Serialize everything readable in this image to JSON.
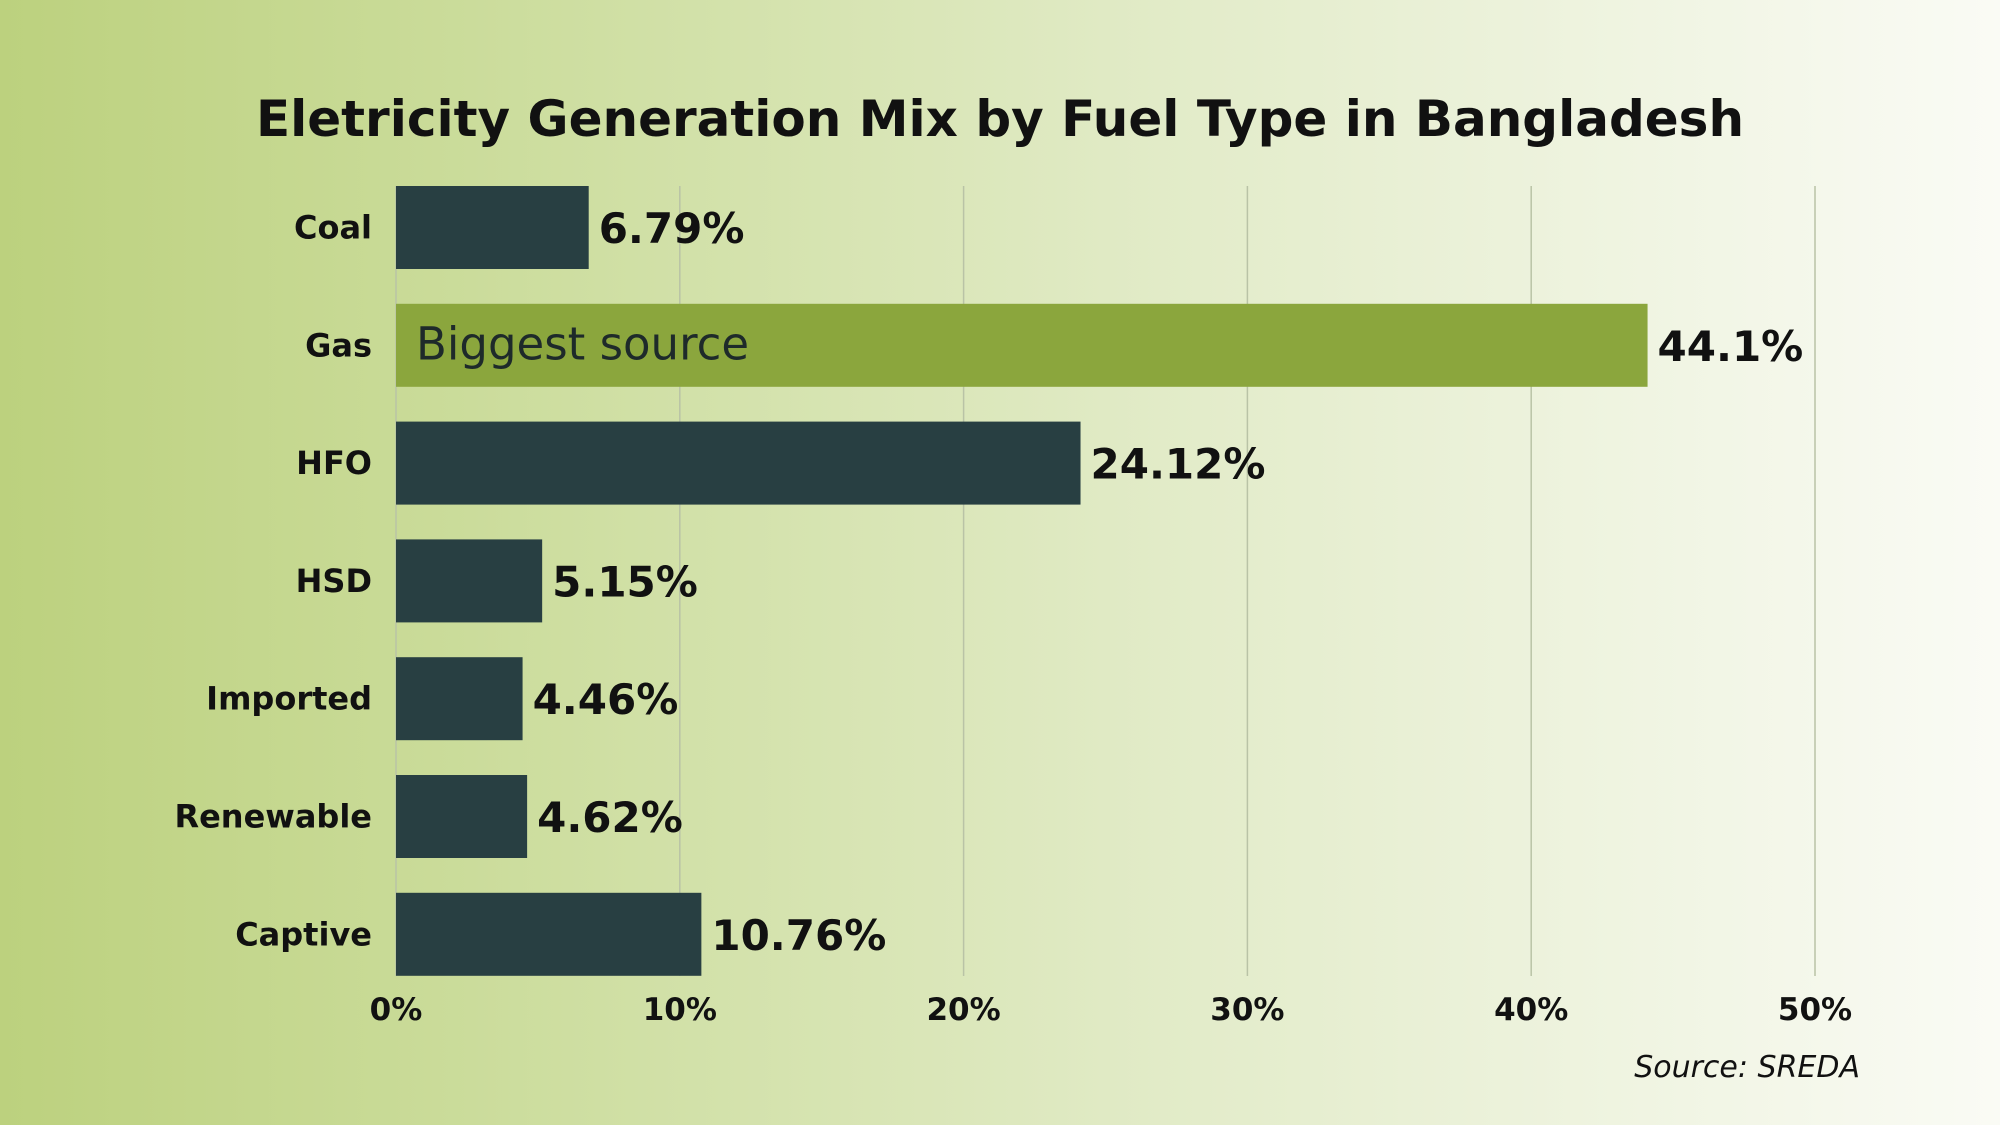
{
  "chart_data": {
    "type": "bar",
    "orientation": "horizontal",
    "title": "Eletricity Generation Mix by Fuel Type in Bangladesh",
    "categories": [
      "Coal",
      "Gas",
      "HFO",
      "HSD",
      "Imported",
      "Renewable",
      "Captive"
    ],
    "values": [
      6.79,
      44.1,
      24.12,
      5.15,
      4.46,
      4.62,
      10.76
    ],
    "value_labels": [
      "6.79%",
      "44.1%",
      "24.12%",
      "5.15%",
      "4.46%",
      "4.62%",
      "10.76%"
    ],
    "xlim": [
      0,
      50
    ],
    "xticks": [
      0,
      10,
      20,
      30,
      40,
      50
    ],
    "xtick_labels": [
      "0%",
      "10%",
      "20%",
      "30%",
      "40%",
      "50%"
    ],
    "grid": "vertical",
    "highlight": {
      "category": "Gas",
      "annotation": "Biggest source"
    },
    "colors": {
      "default_bar": "#283f42",
      "highlight_bar": "#8ba63d",
      "grid": "#b9c3a6"
    },
    "source": "Source: SREDA"
  }
}
